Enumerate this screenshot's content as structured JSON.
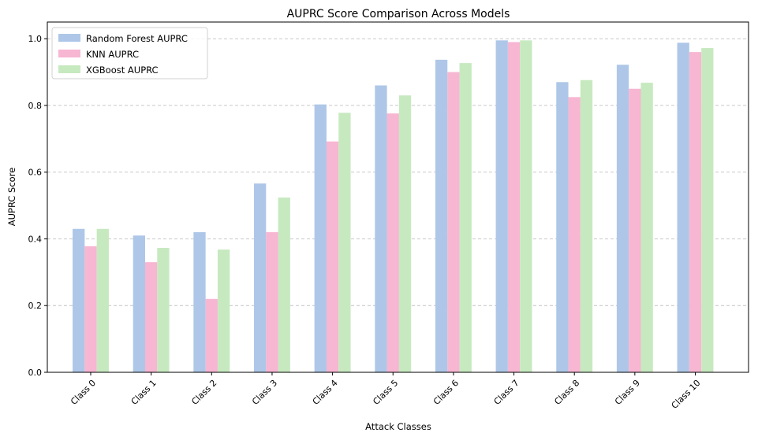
{
  "chart_data": {
    "type": "bar",
    "title": "AUPRC Score Comparison Across Models",
    "xlabel": "Attack Classes",
    "ylabel": "AUPRC Score",
    "categories": [
      "Class 0",
      "Class 1",
      "Class 2",
      "Class 3",
      "Class 4",
      "Class 5",
      "Class 6",
      "Class 7",
      "Class 8",
      "Class 9",
      "Class 10"
    ],
    "ylim": [
      0,
      1.05
    ],
    "yticks": [
      "0.0",
      "0.2",
      "0.4",
      "0.6",
      "0.8",
      "1.0"
    ],
    "grid": "y-dashed",
    "legend_position": "top-left",
    "series": [
      {
        "name": "Random Forest AUPRC",
        "color": "#aec7e8",
        "values": [
          0.43,
          0.41,
          0.42,
          0.566,
          0.803,
          0.86,
          0.937,
          0.995,
          0.87,
          0.922,
          0.988
        ]
      },
      {
        "name": "KNN AUPRC",
        "color": "#f7b6d2",
        "values": [
          0.378,
          0.33,
          0.22,
          0.42,
          0.692,
          0.776,
          0.9,
          0.99,
          0.825,
          0.85,
          0.96
        ]
      },
      {
        "name": "XGBoost AUPRC",
        "color": "#c7e9c0",
        "values": [
          0.43,
          0.373,
          0.368,
          0.524,
          0.778,
          0.83,
          0.927,
          0.995,
          0.876,
          0.868,
          0.972
        ]
      }
    ]
  }
}
